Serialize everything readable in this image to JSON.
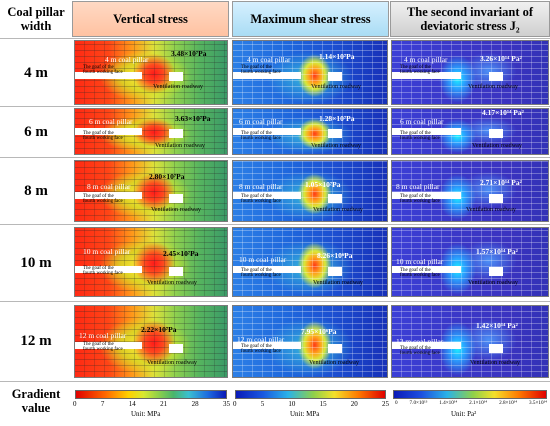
{
  "header": {
    "row_label": "Coal pillar width",
    "columns": [
      "Vertical stress",
      "Maximum shear stress",
      "The second invariant of deviatoric stress J₂"
    ]
  },
  "labels": {
    "goaf_line1": "The goaf of the",
    "goaf_line2": "fourth working face",
    "ventilation": "Ventilation roadway"
  },
  "rows": [
    {
      "width": "4 m",
      "pillar": "4 m coal pillar",
      "vertical": "3.48×10⁷Pa",
      "shear": "1.14×10⁷Pa",
      "j2": "3.26×10¹⁴ Pa²"
    },
    {
      "width": "6 m",
      "pillar": "6 m coal pillar",
      "vertical": "3.63×10⁷Pa",
      "shear": "1.28×10⁷Pa",
      "j2": "4.17×10¹⁴ Pa²"
    },
    {
      "width": "8 m",
      "pillar": "8 m coal pillar",
      "vertical": "2.80×10⁷Pa",
      "shear": "1.05×10⁷Pa",
      "j2": "2.71×10¹⁴ Pa²"
    },
    {
      "width": "10 m",
      "pillar": "10 m coal pillar",
      "vertical": "2.45×10⁷Pa",
      "shear": "8.26×10⁶Pa",
      "j2": "1.57×10¹⁴ Pa²"
    },
    {
      "width": "12 m",
      "pillar": "12 m coal pillar",
      "vertical": "2.22×10⁷Pa",
      "shear": "7.95×10⁶Pa",
      "j2": "1.42×10¹⁴ Pa²"
    }
  ],
  "gradient": {
    "label": "Gradient value",
    "vertical": {
      "ticks": [
        "0",
        "7",
        "14",
        "21",
        "28",
        "35"
      ],
      "unit": "Unit: MPa"
    },
    "shear": {
      "ticks": [
        "0",
        "5",
        "10",
        "15",
        "20",
        "25"
      ],
      "unit": "Unit: MPa"
    },
    "j2": {
      "ticks": [
        "0",
        "7.0×10¹³",
        "1.4×10¹⁴",
        "2.1×10¹⁴",
        "2.8×10¹⁴",
        "3.5×10¹⁴"
      ],
      "unit": "Unit: Pa²"
    }
  },
  "colors": {
    "vertical_header": "#ffc2a2",
    "shear_header": "#a9dcf4",
    "j2_header": "#cfcfcf"
  }
}
